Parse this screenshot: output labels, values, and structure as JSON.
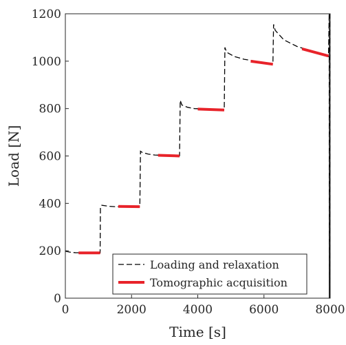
{
  "chart_data": {
    "type": "line",
    "xlabel": "Time [s]",
    "ylabel": "Load [N]",
    "xlim": [
      0,
      8000
    ],
    "ylim": [
      0,
      1200
    ],
    "xticks": [
      0,
      2000,
      4000,
      6000,
      8000
    ],
    "yticks": [
      0,
      200,
      400,
      600,
      800,
      1000,
      1200
    ],
    "grid": false,
    "legend_position": "bottom-right",
    "series": [
      {
        "name": "Loading and relaxation",
        "style": "dashed",
        "color": "#000000",
        "x": [
          0,
          150,
          300,
          1050,
          1060,
          1100,
          1300,
          1500,
          2250,
          2270,
          2320,
          2500,
          2700,
          3450,
          3470,
          3520,
          3700,
          3900,
          4800,
          4820,
          4870,
          5100,
          5400,
          6270,
          6290,
          6340,
          6600,
          7000,
          7500,
          7950,
          7970,
          7975,
          7980
        ],
        "y": [
          198,
          194,
          192,
          191,
          385,
          392,
          388,
          386,
          386,
          620,
          615,
          608,
          604,
          601,
          835,
          815,
          805,
          800,
          795,
          1058,
          1038,
          1020,
          1008,
          988,
          1155,
          1130,
          1090,
          1062,
          1040,
          1020,
          1200,
          0,
          1200
        ]
      },
      {
        "name": "Tomographic acquisition",
        "style": "solid",
        "color": "#e8232a",
        "segments": [
          {
            "x": [
              400,
              1050
            ],
            "y": [
              191,
              191
            ]
          },
          {
            "x": [
              1600,
              2250
            ],
            "y": [
              387,
              386
            ]
          },
          {
            "x": [
              2800,
              3450
            ],
            "y": [
              603,
              600
            ]
          },
          {
            "x": [
              4000,
              4800
            ],
            "y": [
              798,
              794
            ]
          },
          {
            "x": [
              5600,
              6270
            ],
            "y": [
              1000,
              987
            ]
          },
          {
            "x": [
              7150,
              7950
            ],
            "y": [
              1052,
              1022
            ]
          }
        ]
      }
    ]
  }
}
